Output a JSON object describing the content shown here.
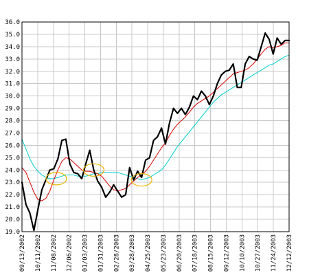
{
  "chart_data": {
    "type": "line",
    "title": "",
    "xlabel": "",
    "ylabel": "",
    "ylim": [
      19.0,
      36.0
    ],
    "yticks": [
      "19.0",
      "20.0",
      "21.0",
      "22.0",
      "23.0",
      "24.0",
      "25.0",
      "26.0",
      "27.0",
      "28.0",
      "29.0",
      "30.0",
      "31.0",
      "32.0",
      "33.0",
      "34.0",
      "35.0",
      "36.0"
    ],
    "xticks": [
      "09/13/2002",
      "10/11/2002",
      "11/08/2002",
      "12/06/2002",
      "01/03/2003",
      "01/31/2003",
      "02/28/2003",
      "03/28/2003",
      "04/25/2003",
      "05/23/2003",
      "06/20/2003",
      "07/18/2003",
      "08/15/2003",
      "09/12/2003",
      "10/10/2003",
      "10/27/2003",
      "11/24/2003",
      "12/12/2003"
    ],
    "grid": true,
    "legend": "none",
    "series": [
      {
        "color": "#000000",
        "values": [
          23.0,
          21.2,
          20.5,
          19.1,
          20.8,
          22.4,
          23.2,
          24.0,
          24.1,
          24.9,
          26.4,
          26.5,
          24.5,
          23.8,
          23.7,
          23.3,
          24.5,
          25.6,
          24.0,
          23.1,
          22.6,
          21.8,
          22.2,
          22.8,
          22.3,
          21.8,
          22.0,
          24.2,
          23.2,
          23.9,
          23.4,
          24.8,
          25.0,
          26.4,
          26.7,
          27.4,
          26.1,
          27.8,
          29.0,
          28.6,
          29.0,
          28.5,
          29.1,
          30.0,
          29.7,
          30.4,
          30.0,
          29.3,
          30.0,
          31.0,
          31.7,
          32.0,
          32.1,
          32.6,
          30.7,
          30.7,
          32.6,
          33.2,
          33.0,
          32.9,
          34.0,
          35.1,
          34.6,
          33.4,
          34.7,
          34.2,
          34.5,
          34.5
        ]
      },
      {
        "color": "#dd0000",
        "values": [
          24.2,
          23.8,
          23.0,
          22.2,
          21.6,
          21.5,
          21.7,
          22.3,
          23.2,
          24.0,
          24.7,
          25.0,
          24.9,
          24.6,
          24.3,
          24.0,
          23.9,
          23.9,
          23.8,
          23.7,
          23.5,
          23.1,
          22.7,
          22.4,
          22.3,
          22.4,
          22.5,
          22.8,
          23.1,
          23.4,
          23.6,
          23.9,
          24.3,
          24.8,
          25.3,
          25.8,
          26.2,
          26.8,
          27.3,
          27.7,
          28.0,
          28.3,
          28.7,
          29.1,
          29.4,
          29.6,
          29.8,
          30.0,
          30.3,
          30.6,
          30.9,
          31.2,
          31.5,
          31.8,
          31.9,
          32.0,
          32.1,
          32.3,
          32.6,
          33.0,
          33.4,
          33.8,
          34.0,
          33.9,
          34.0,
          34.1,
          34.3,
          34.3
        ]
      },
      {
        "color": "#00cccc",
        "values": [
          26.5,
          25.7,
          24.9,
          24.3,
          23.9,
          23.6,
          23.4,
          23.3,
          23.3,
          23.4,
          23.5,
          23.6,
          23.6,
          23.6,
          23.5,
          23.5,
          23.5,
          23.6,
          23.7,
          23.7,
          23.8,
          23.8,
          23.8,
          23.8,
          23.8,
          23.7,
          23.6,
          23.5,
          23.4,
          23.3,
          23.2,
          23.3,
          23.4,
          23.6,
          23.8,
          24.0,
          24.4,
          24.9,
          25.4,
          25.9,
          26.3,
          26.7,
          27.1,
          27.5,
          27.9,
          28.3,
          28.7,
          29.1,
          29.5,
          29.8,
          30.1,
          30.3,
          30.5,
          30.7,
          30.9,
          31.1,
          31.3,
          31.5,
          31.7,
          31.9,
          32.1,
          32.3,
          32.5,
          32.6,
          32.8,
          33.0,
          33.2,
          33.3
        ]
      }
    ],
    "markers": [
      {
        "index": 8.6,
        "value": 23.3,
        "color": "#e8b400"
      },
      {
        "index": 18.0,
        "value": 24.0,
        "color": "#e8b400"
      },
      {
        "index": 30.0,
        "value": 23.2,
        "color": "#e8b400"
      }
    ]
  }
}
